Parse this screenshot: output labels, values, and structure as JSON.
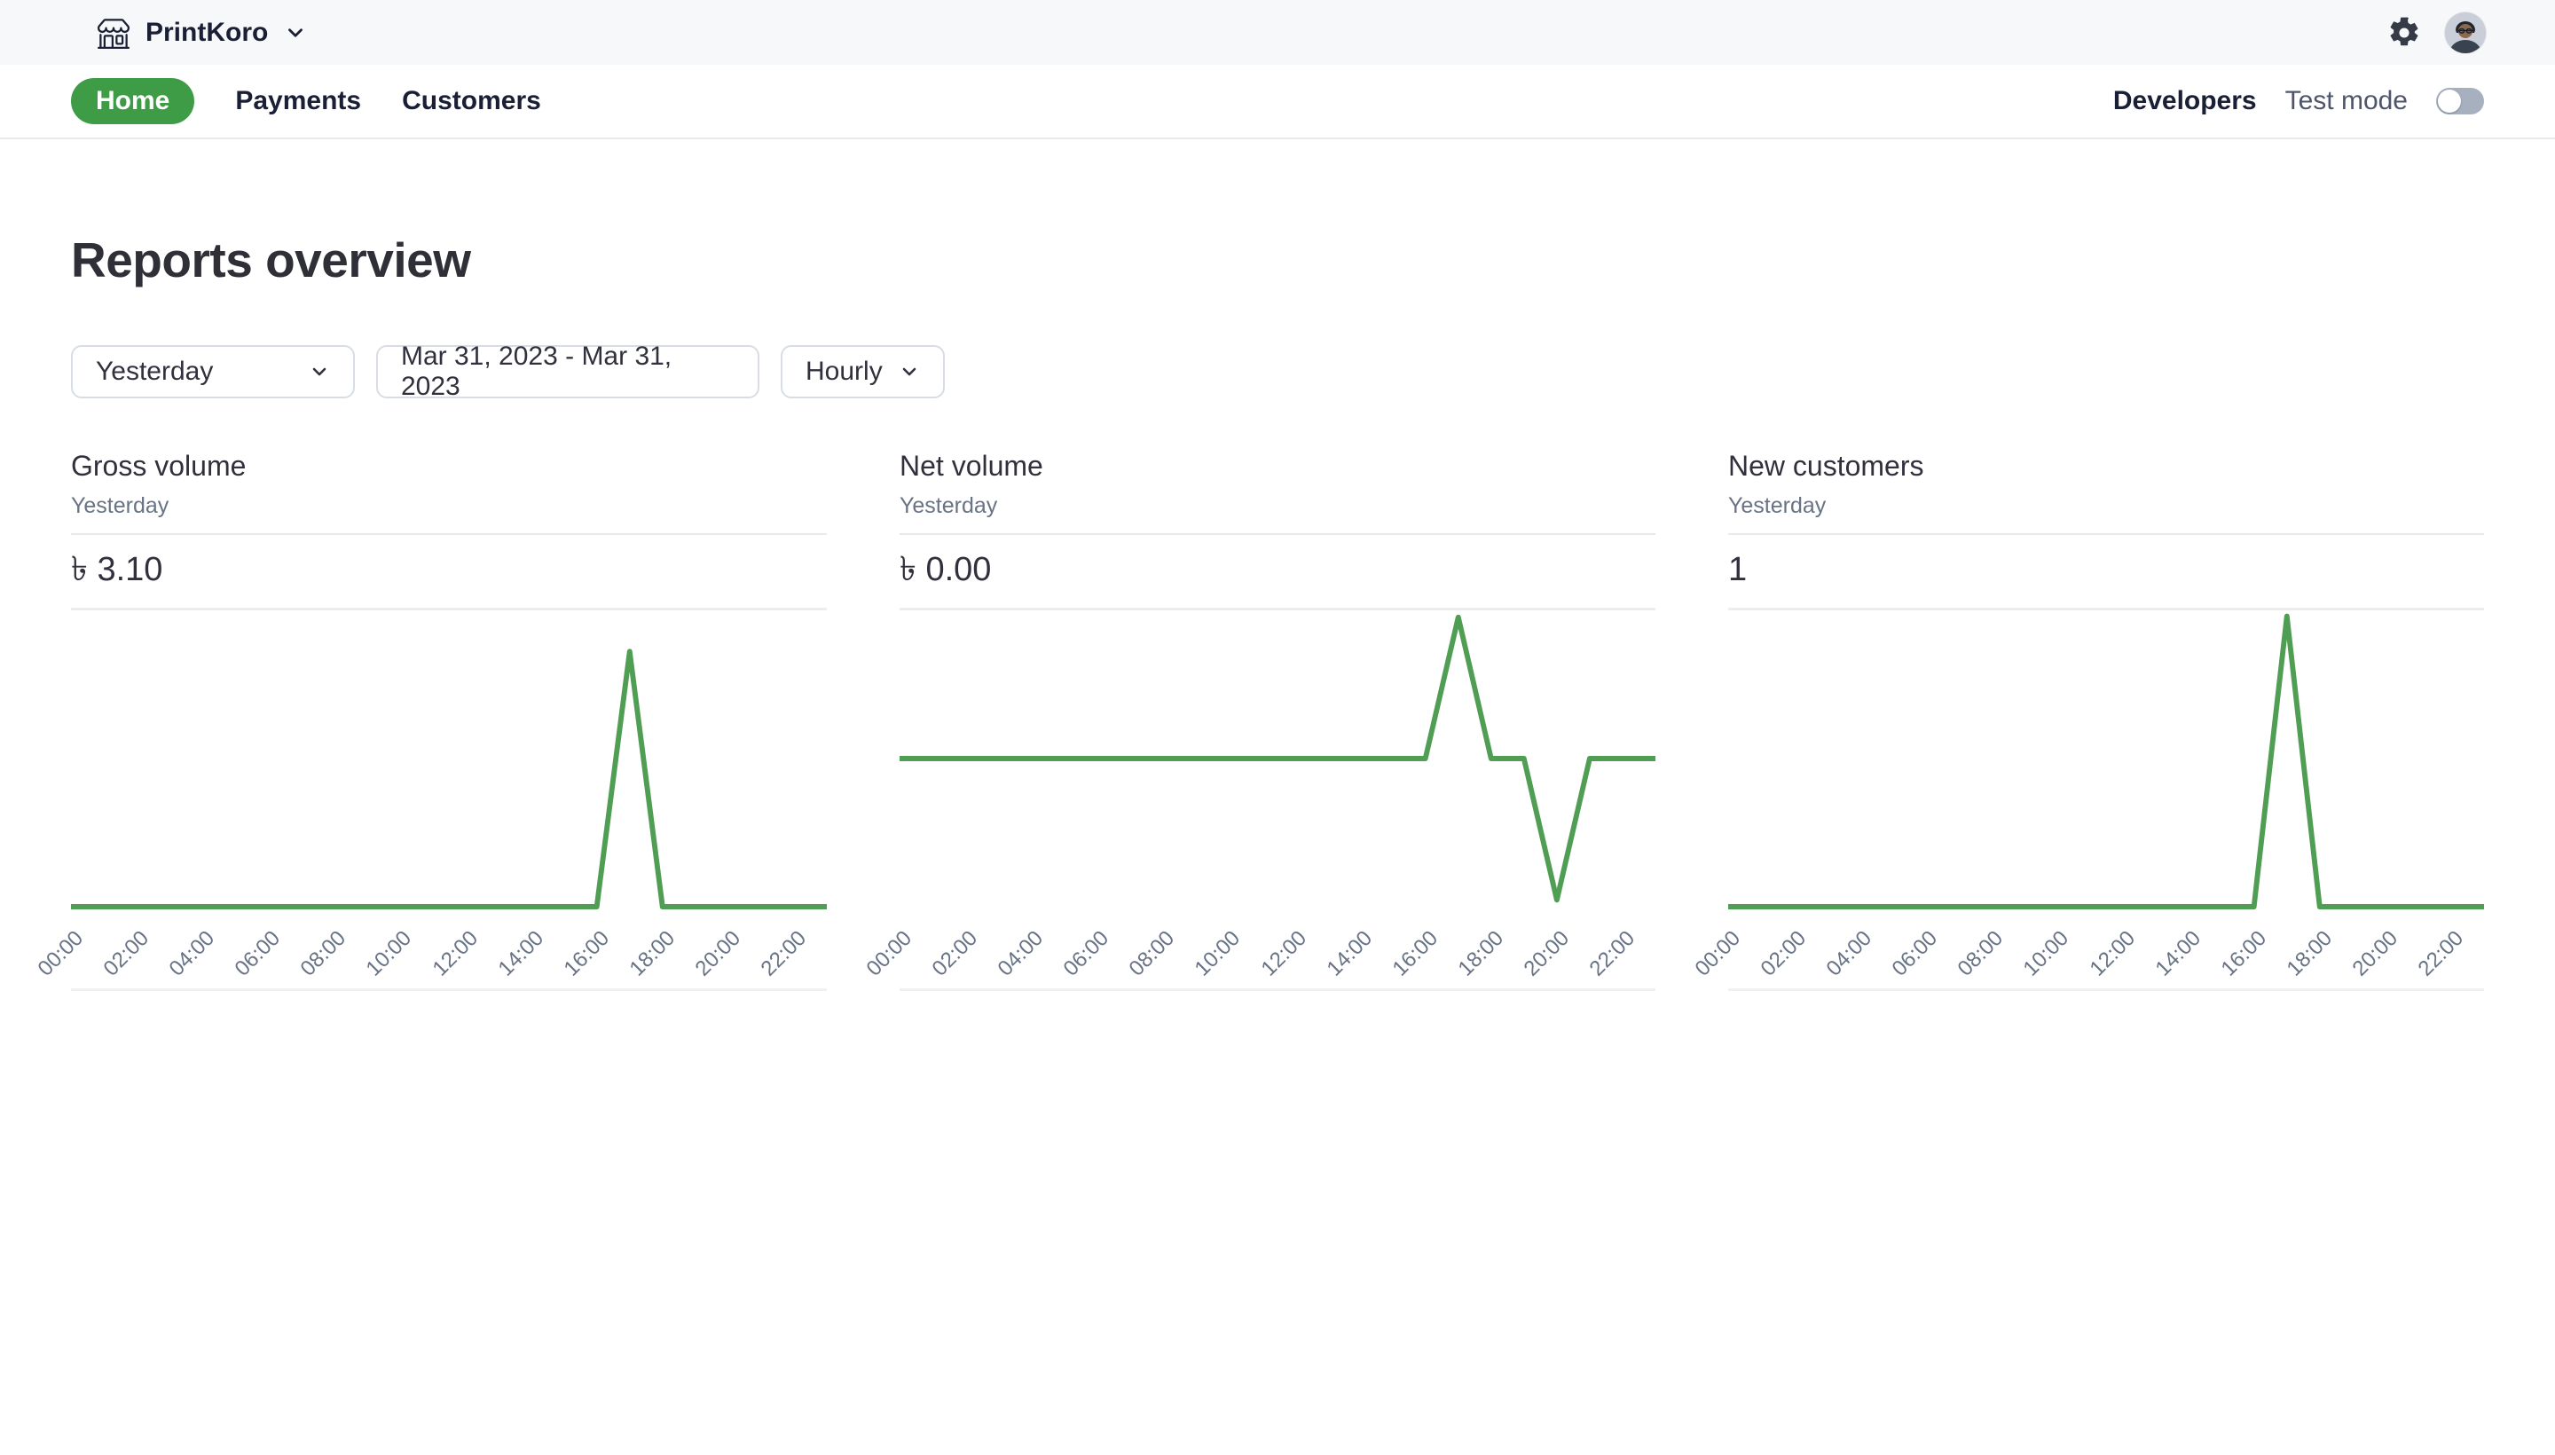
{
  "topbar": {
    "account_name": "PrintKoro"
  },
  "nav": {
    "items": [
      {
        "label": "Home",
        "active": true
      },
      {
        "label": "Payments",
        "active": false
      },
      {
        "label": "Customers",
        "active": false
      }
    ],
    "developers_label": "Developers",
    "test_mode_label": "Test mode",
    "test_mode_on": false
  },
  "page": {
    "title": "Reports overview"
  },
  "filters": {
    "range_preset": "Yesterday",
    "date_range": "Mar 31, 2023 - Mar 31, 2023",
    "granularity": "Hourly"
  },
  "colors": {
    "accent_green": "#3f9c46",
    "chart_line": "#509e53",
    "muted_text": "#687385",
    "dark_text": "#30313d",
    "toggle_track": "#a6b0bf"
  },
  "chart_data": [
    {
      "type": "line",
      "title": "Gross volume",
      "subtitle": "Yesterday",
      "total": "৳ 3.10",
      "x": [
        "00:00",
        "01:00",
        "02:00",
        "03:00",
        "04:00",
        "05:00",
        "06:00",
        "07:00",
        "08:00",
        "09:00",
        "10:00",
        "11:00",
        "12:00",
        "13:00",
        "14:00",
        "15:00",
        "16:00",
        "17:00",
        "18:00",
        "19:00",
        "20:00",
        "21:00",
        "22:00",
        "23:00"
      ],
      "values": [
        0,
        0,
        0,
        0,
        0,
        0,
        0,
        0,
        0,
        0,
        0,
        0,
        0,
        0,
        0,
        0,
        0,
        3.1,
        0,
        0,
        0,
        0,
        0,
        0
      ],
      "tick_labels": [
        "00:00",
        "02:00",
        "04:00",
        "06:00",
        "08:00",
        "10:00",
        "12:00",
        "14:00",
        "16:00",
        "18:00",
        "20:00",
        "22:00"
      ],
      "ylim": [
        0,
        3.6
      ],
      "legend": "none",
      "grid": "top-gridline-only"
    },
    {
      "type": "line",
      "title": "Net volume",
      "subtitle": "Yesterday",
      "total": "৳ 0.00",
      "x": [
        "00:00",
        "01:00",
        "02:00",
        "03:00",
        "04:00",
        "05:00",
        "06:00",
        "07:00",
        "08:00",
        "09:00",
        "10:00",
        "11:00",
        "12:00",
        "13:00",
        "14:00",
        "15:00",
        "16:00",
        "17:00",
        "18:00",
        "19:00",
        "20:00",
        "21:00",
        "22:00",
        "23:00"
      ],
      "values": [
        0,
        0,
        0,
        0,
        0,
        0,
        0,
        0,
        0,
        0,
        0,
        0,
        0,
        0,
        0,
        0,
        0,
        3.1,
        0,
        0,
        -3.1,
        0,
        0,
        0
      ],
      "tick_labels": [
        "00:00",
        "02:00",
        "04:00",
        "06:00",
        "08:00",
        "10:00",
        "12:00",
        "14:00",
        "16:00",
        "18:00",
        "20:00",
        "22:00"
      ],
      "ylim": [
        -3.25,
        3.25
      ],
      "legend": "none",
      "grid": "top-gridline-only"
    },
    {
      "type": "line",
      "title": "New customers",
      "subtitle": "Yesterday",
      "total": "1",
      "x": [
        "00:00",
        "01:00",
        "02:00",
        "03:00",
        "04:00",
        "05:00",
        "06:00",
        "07:00",
        "08:00",
        "09:00",
        "10:00",
        "11:00",
        "12:00",
        "13:00",
        "14:00",
        "15:00",
        "16:00",
        "17:00",
        "18:00",
        "19:00",
        "20:00",
        "21:00",
        "22:00",
        "23:00"
      ],
      "values": [
        0,
        0,
        0,
        0,
        0,
        0,
        0,
        0,
        0,
        0,
        0,
        0,
        0,
        0,
        0,
        0,
        0,
        1,
        0,
        0,
        0,
        0,
        0,
        0
      ],
      "tick_labels": [
        "00:00",
        "02:00",
        "04:00",
        "06:00",
        "08:00",
        "10:00",
        "12:00",
        "14:00",
        "16:00",
        "18:00",
        "20:00",
        "22:00"
      ],
      "ylim": [
        0,
        1.02
      ],
      "legend": "none",
      "grid": "top-gridline-only"
    }
  ]
}
